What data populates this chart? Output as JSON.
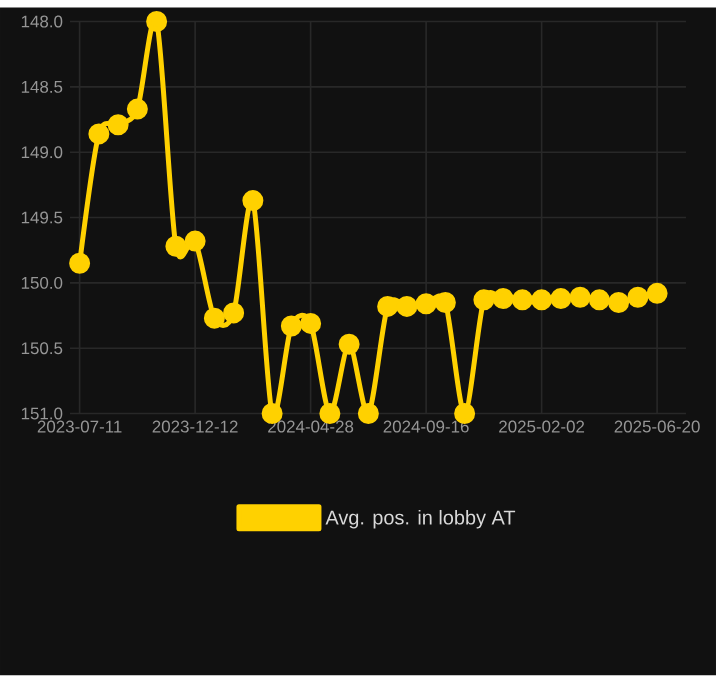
{
  "chart_data": {
    "type": "line",
    "categories": [
      "2023-07-11",
      null,
      null,
      null,
      null,
      null,
      "2023-12-12",
      null,
      null,
      null,
      null,
      null,
      "2024-04-28",
      null,
      null,
      null,
      null,
      null,
      "2024-09-16",
      null,
      null,
      null,
      null,
      null,
      "2025-02-02",
      null,
      null,
      null,
      null,
      null,
      "2025-06-20"
    ],
    "series": [
      {
        "name": "Avg. pos. in lobby AT",
        "color": "#ffd100",
        "values": [
          149.85,
          148.86,
          148.79,
          148.67,
          148.0,
          149.72,
          149.68,
          150.27,
          150.23,
          149.37,
          151.0,
          150.33,
          150.31,
          151.0,
          150.47,
          151.0,
          150.18,
          150.18,
          150.16,
          150.15,
          151.0,
          150.13,
          150.12,
          150.13,
          150.13,
          150.12,
          150.11,
          150.13,
          150.15,
          150.11,
          150.08
        ]
      }
    ],
    "ylim": [
      151.0,
      148.0
    ],
    "yticks": [
      {
        "value": 148.0,
        "label": "148.0"
      },
      {
        "value": 148.5,
        "label": "148.5"
      },
      {
        "value": 149.0,
        "label": "149.0"
      },
      {
        "value": 149.5,
        "label": "149.5"
      },
      {
        "value": 150.0,
        "label": "150.0"
      },
      {
        "value": 150.5,
        "label": "150.5"
      },
      {
        "value": 151.0,
        "label": "151.0"
      }
    ],
    "grid": true,
    "legend": "bottom",
    "marker": "circle"
  }
}
